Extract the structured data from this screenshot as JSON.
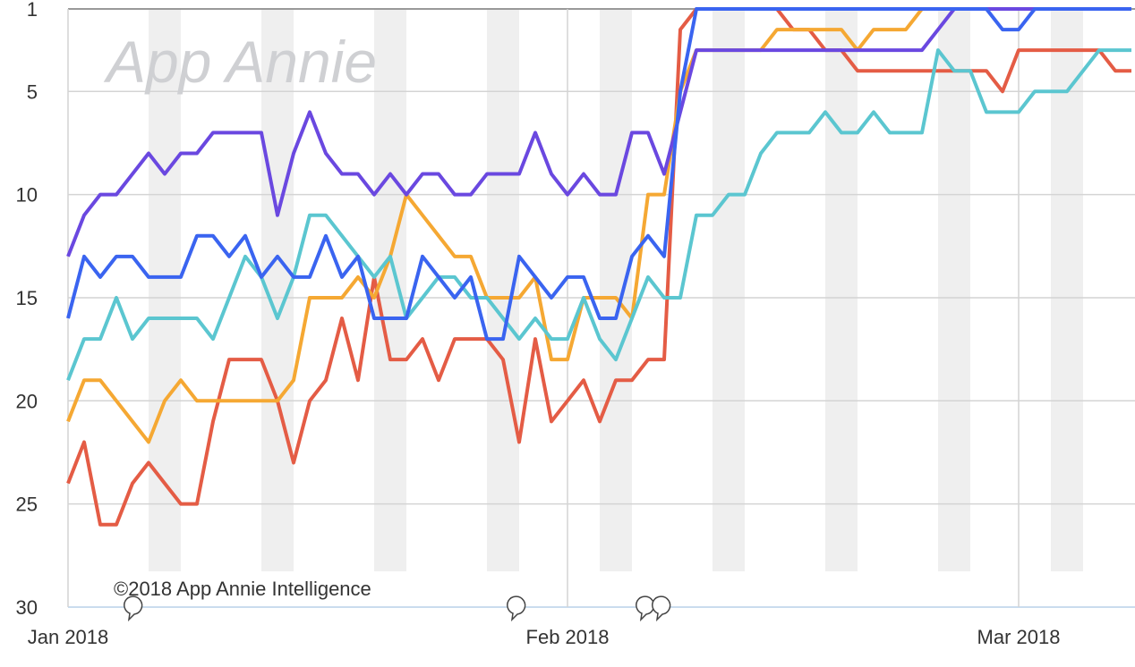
{
  "chart_data": {
    "type": "line",
    "watermark": "App Annie",
    "annotation": "©2018 App Annie Intelligence",
    "xlim": [
      0,
      66
    ],
    "xticks": [
      {
        "value": 0,
        "label": "Jan 2018"
      },
      {
        "value": 31,
        "label": "Feb 2018"
      },
      {
        "value": 59,
        "label": "Mar 2018"
      }
    ],
    "ylim": [
      1,
      30
    ],
    "y_inverted": true,
    "yticks": [
      1,
      5,
      10,
      15,
      20,
      25,
      30
    ],
    "grid": true,
    "shaded_bands": [
      [
        5,
        7
      ],
      [
        12,
        14
      ],
      [
        19,
        21
      ],
      [
        26,
        28
      ],
      [
        33,
        35
      ],
      [
        40,
        42
      ],
      [
        47,
        49
      ],
      [
        54,
        56
      ],
      [
        61,
        63
      ]
    ],
    "x": [
      0,
      1,
      2,
      3,
      4,
      5,
      6,
      7,
      8,
      9,
      10,
      11,
      12,
      13,
      14,
      15,
      16,
      17,
      18,
      19,
      20,
      21,
      22,
      23,
      24,
      25,
      26,
      27,
      28,
      29,
      30,
      31,
      32,
      33,
      34,
      35,
      36,
      37,
      38,
      39,
      40,
      41,
      42,
      43,
      44,
      45,
      46,
      47,
      48,
      49,
      50,
      51,
      52,
      53,
      54,
      55,
      56,
      57,
      58,
      59,
      60,
      61,
      62,
      63,
      64,
      65,
      66
    ],
    "series": [
      {
        "color": "#e45c45",
        "values": [
          24,
          22,
          26,
          26,
          24,
          23,
          24,
          25,
          25,
          21,
          18,
          18,
          18,
          20,
          23,
          20,
          19,
          16,
          19,
          14,
          18,
          18,
          17,
          19,
          17,
          17,
          17,
          18,
          22,
          17,
          21,
          20,
          19,
          21,
          19,
          19,
          18,
          18,
          2,
          1,
          1,
          1,
          1,
          1,
          1,
          2,
          2,
          3,
          3,
          4,
          4,
          4,
          4,
          4,
          4,
          4,
          4,
          4,
          5,
          3,
          3,
          3,
          3,
          3,
          3,
          4,
          4
        ]
      },
      {
        "color": "#f5a833",
        "values": [
          21,
          19,
          19,
          20,
          21,
          22,
          20,
          19,
          20,
          20,
          20,
          20,
          20,
          20,
          19,
          15,
          15,
          15,
          14,
          15,
          13,
          10,
          11,
          12,
          13,
          13,
          15,
          15,
          15,
          14,
          18,
          18,
          15,
          15,
          15,
          16,
          10,
          10,
          5,
          3,
          3,
          3,
          3,
          3,
          2,
          2,
          2,
          2,
          2,
          3,
          2,
          2,
          2,
          1,
          1,
          1,
          1,
          1,
          1,
          1,
          1,
          1,
          1,
          1,
          1,
          1,
          1
        ]
      },
      {
        "color": "#5bc6d0",
        "values": [
          19,
          17,
          17,
          15,
          17,
          16,
          16,
          16,
          16,
          17,
          15,
          13,
          14,
          16,
          14,
          11,
          11,
          12,
          13,
          14,
          13,
          16,
          15,
          14,
          14,
          15,
          15,
          16,
          17,
          16,
          17,
          17,
          15,
          17,
          18,
          16,
          14,
          15,
          15,
          11,
          11,
          10,
          10,
          8,
          7,
          7,
          7,
          6,
          7,
          7,
          6,
          7,
          7,
          7,
          3,
          4,
          4,
          6,
          6,
          6,
          5,
          5,
          5,
          4,
          3,
          3,
          3
        ]
      },
      {
        "color": "#6a48e0",
        "values": [
          13,
          11,
          10,
          10,
          9,
          8,
          9,
          8,
          8,
          7,
          7,
          7,
          7,
          11,
          8,
          6,
          8,
          9,
          9,
          10,
          9,
          10,
          9,
          9,
          10,
          10,
          9,
          9,
          9,
          7,
          9,
          10,
          9,
          10,
          10,
          7,
          7,
          9,
          6,
          3,
          3,
          3,
          3,
          3,
          3,
          3,
          3,
          3,
          3,
          3,
          3,
          3,
          3,
          3,
          2,
          1,
          1,
          1,
          1,
          1,
          1,
          1,
          1,
          1,
          1,
          1,
          1
        ]
      },
      {
        "color": "#3a64f0",
        "values": [
          16,
          13,
          14,
          13,
          13,
          14,
          14,
          14,
          12,
          12,
          13,
          12,
          14,
          13,
          14,
          14,
          12,
          14,
          13,
          16,
          16,
          16,
          13,
          14,
          15,
          14,
          17,
          17,
          13,
          14,
          15,
          14,
          14,
          16,
          16,
          13,
          12,
          13,
          5,
          1,
          1,
          1,
          1,
          1,
          1,
          1,
          1,
          1,
          1,
          1,
          1,
          1,
          1,
          1,
          1,
          1,
          1,
          1,
          2,
          2,
          1,
          1,
          1,
          1,
          1,
          1,
          1
        ]
      }
    ]
  }
}
